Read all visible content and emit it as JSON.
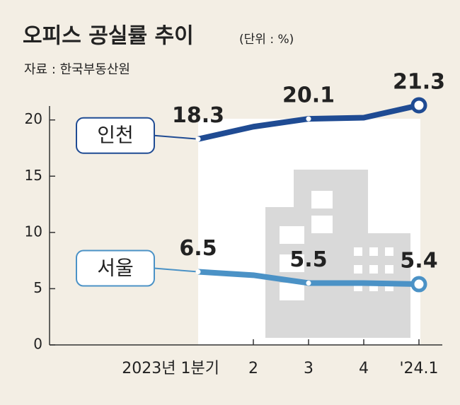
{
  "chart_data": {
    "type": "line",
    "title": "오피스 공실률 추이",
    "subtitle": "(단위 : %)",
    "source": "자료 : 한국부동산원",
    "categories": [
      "2023년 1분기",
      "2",
      "3",
      "4",
      "'24.1"
    ],
    "series": [
      {
        "name": "인천",
        "color": "#1f4b93",
        "values": [
          18.3,
          19.4,
          20.1,
          20.2,
          21.3
        ],
        "value_labels": [
          "18.3",
          null,
          "20.1",
          null,
          "21.3"
        ]
      },
      {
        "name": "서울",
        "color": "#4b92c6",
        "values": [
          6.5,
          6.2,
          5.5,
          5.5,
          5.4
        ],
        "value_labels": [
          "6.5",
          null,
          "5.5",
          null,
          "5.4"
        ]
      }
    ],
    "ylim": [
      0,
      21.3
    ],
    "yticks": [
      0,
      5,
      10,
      15,
      20
    ]
  }
}
